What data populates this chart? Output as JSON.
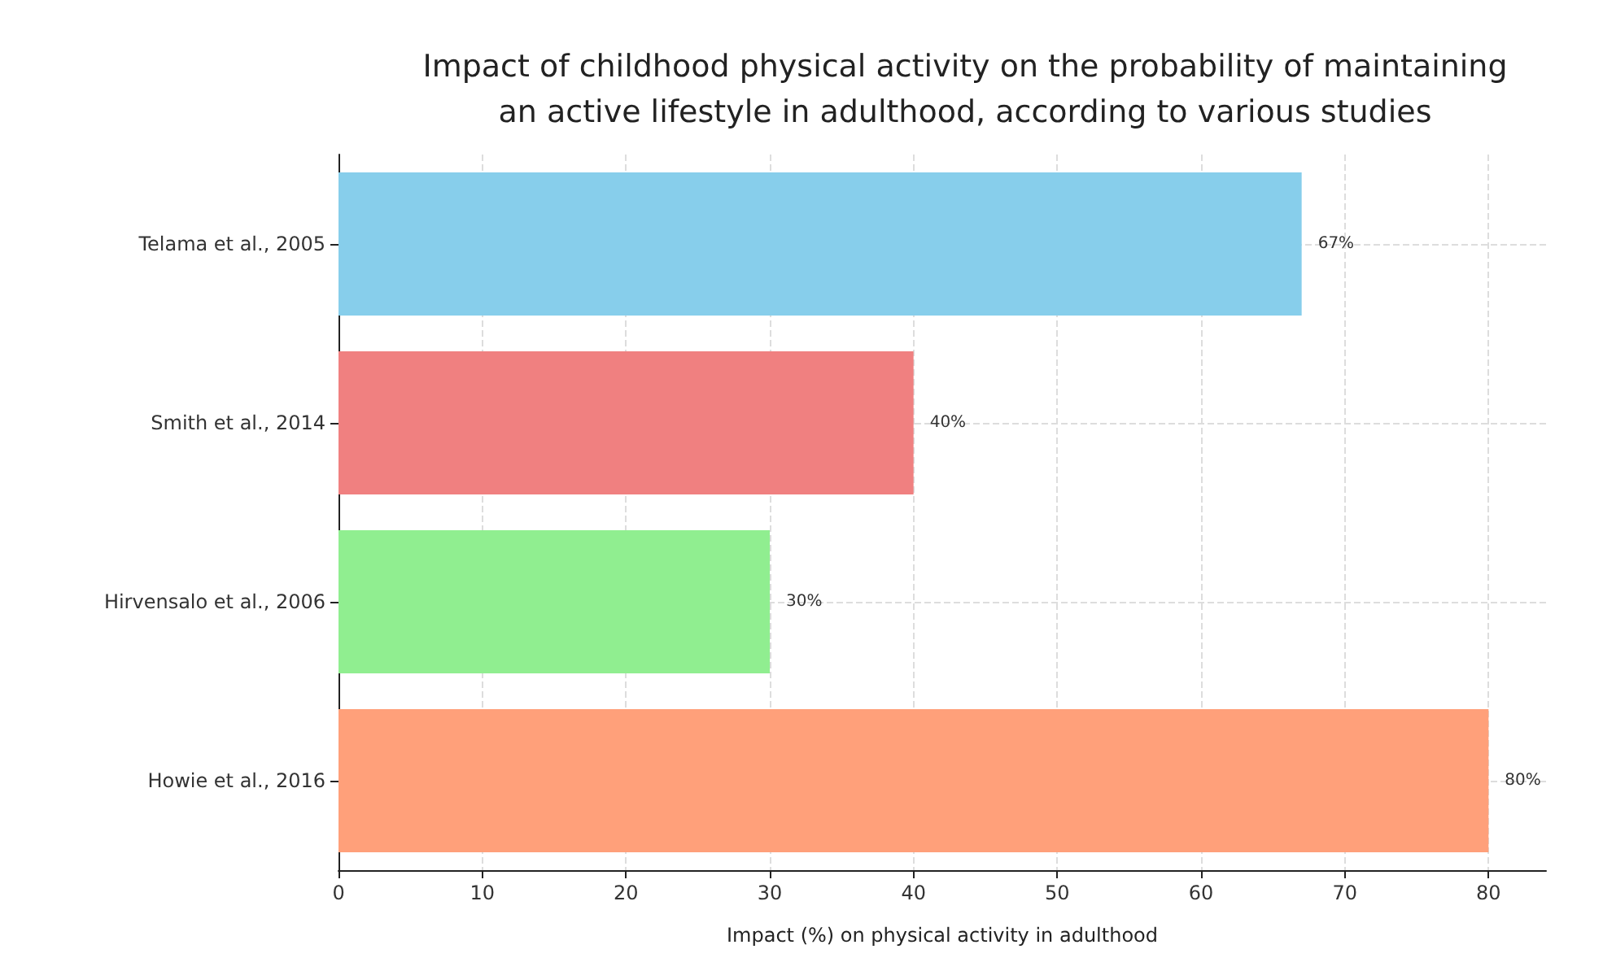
{
  "chart_data": {
    "type": "bar",
    "orientation": "horizontal",
    "title": "Impact of childhood physical activity on the probability of maintaining\nan active lifestyle in adulthood, according to various studies",
    "xlabel": "Impact (%) on physical activity in adulthood",
    "categories": [
      "Telama et al., 2005",
      "Smith et al., 2014",
      "Hirvensalo et al., 2006",
      "Howie et al., 2016"
    ],
    "values": [
      67,
      40,
      30,
      80
    ],
    "colors": [
      "#87ceeb",
      "#f08080",
      "#90ee90",
      "#ffa07a"
    ],
    "value_labels": [
      "67%",
      "40%",
      "30%",
      "80%"
    ],
    "xlim": [
      0,
      84
    ],
    "xticks": [
      0,
      10,
      20,
      30,
      40,
      50,
      60,
      70,
      80
    ],
    "grid": true
  }
}
